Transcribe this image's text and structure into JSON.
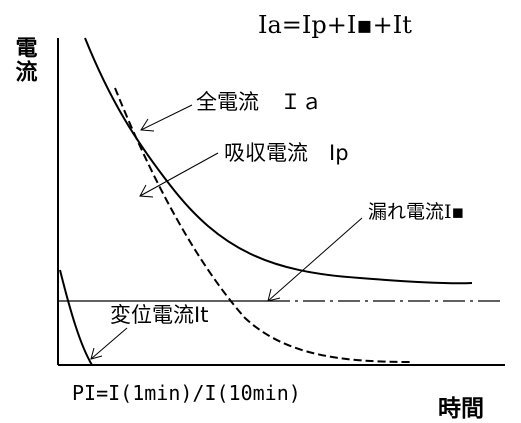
{
  "formula": "Ia=Ip+I▪+It",
  "y_axis_label": "電流",
  "x_axis_label": "時間",
  "pi_formula": "PI=I(1min)/I(10min)",
  "curves": {
    "total": {
      "label": "全電流　Ｉａ"
    },
    "absorption": {
      "label": "吸収電流　Ip"
    },
    "leakage": {
      "label": "漏れ電流I▪"
    },
    "displacement": {
      "label": "変位電流It"
    }
  },
  "colors": {
    "line": "#000000",
    "background": "#ffffff"
  }
}
